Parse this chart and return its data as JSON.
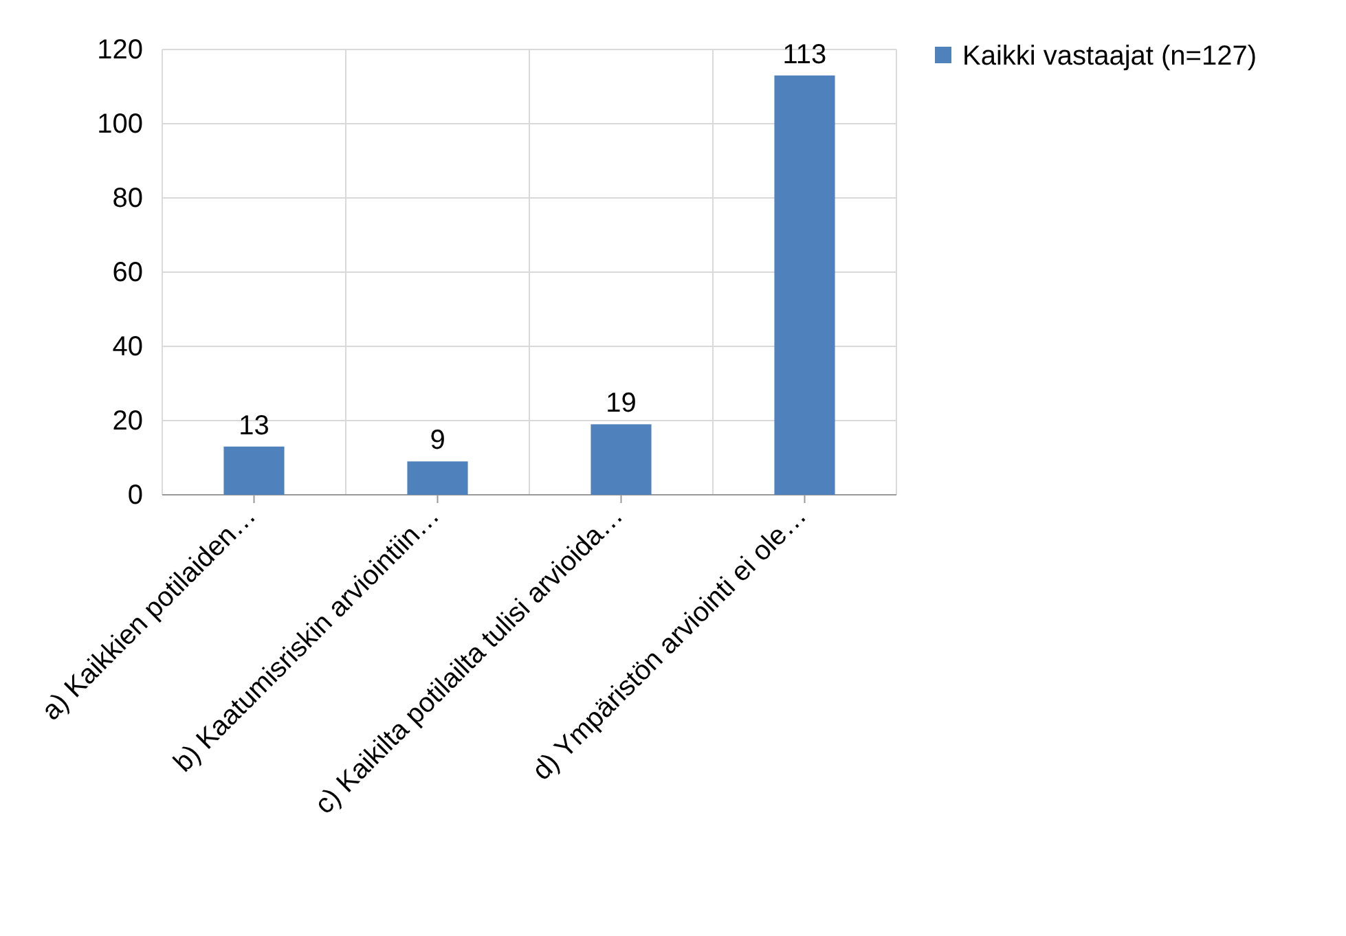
{
  "chart_data": {
    "type": "bar",
    "categories": [
      "a) Kaikkien potilaiden…",
      "b) Kaatumisriskin arviointiin…",
      "c) Kaikilta potilailta tulisi arvioida…",
      "d) Ympäristön arviointi ei ole…"
    ],
    "series": [
      {
        "name": "Kaikki vastaajat (n=127)",
        "color": "#4f81bd",
        "values": [
          13,
          9,
          19,
          113
        ]
      }
    ],
    "ylim": [
      0,
      120
    ],
    "yticks": [
      0,
      20,
      40,
      60,
      80,
      100,
      120
    ],
    "grid": true,
    "legend": "top right",
    "data_labels": true
  }
}
